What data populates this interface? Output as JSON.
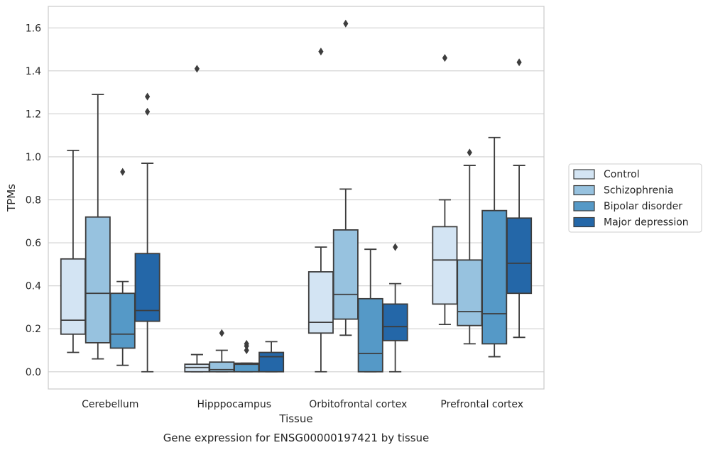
{
  "chart_data": {
    "type": "box",
    "title": "",
    "xlabel": "Tissue",
    "ylabel": "TPMs",
    "caption": "Gene expression for ENSG00000197421 by tissue",
    "ylim": [
      -0.08,
      1.7
    ],
    "yticks": [
      "0.0",
      "0.2",
      "0.4",
      "0.6",
      "0.8",
      "1.0",
      "1.2",
      "1.4",
      "1.6"
    ],
    "grid": "horizontal",
    "legend_position": "right",
    "categories": [
      "Cerebellum",
      "Hipppocampus",
      "Orbitofrontal cortex",
      "Prefrontal cortex"
    ],
    "series": [
      {
        "name": "Control",
        "color": "#d3e4f3",
        "boxes": [
          {
            "whislo": 0.09,
            "q1": 0.175,
            "med": 0.24,
            "q3": 0.525,
            "whishi": 1.03,
            "fliers": []
          },
          {
            "whislo": 0.0,
            "q1": 0.0,
            "med": 0.02,
            "q3": 0.035,
            "whishi": 0.08,
            "fliers": [
              1.41
            ]
          },
          {
            "whislo": 0.0,
            "q1": 0.18,
            "med": 0.23,
            "q3": 0.465,
            "whishi": 0.58,
            "fliers": [
              1.49
            ]
          },
          {
            "whislo": 0.22,
            "q1": 0.315,
            "med": 0.52,
            "q3": 0.675,
            "whishi": 0.8,
            "fliers": [
              1.46
            ]
          }
        ]
      },
      {
        "name": "Schizophrenia",
        "color": "#97c2df",
        "boxes": [
          {
            "whislo": 0.06,
            "q1": 0.135,
            "med": 0.365,
            "q3": 0.72,
            "whishi": 1.29,
            "fliers": []
          },
          {
            "whislo": 0.0,
            "q1": 0.0,
            "med": 0.01,
            "q3": 0.045,
            "whishi": 0.1,
            "fliers": [
              0.18
            ]
          },
          {
            "whislo": 0.17,
            "q1": 0.245,
            "med": 0.36,
            "q3": 0.66,
            "whishi": 0.85,
            "fliers": [
              1.62
            ]
          },
          {
            "whislo": 0.13,
            "q1": 0.215,
            "med": 0.28,
            "q3": 0.52,
            "whishi": 0.96,
            "fliers": [
              1.02
            ]
          }
        ]
      },
      {
        "name": "Bipolar disorder",
        "color": "#5599c7",
        "boxes": [
          {
            "whislo": 0.03,
            "q1": 0.11,
            "med": 0.175,
            "q3": 0.365,
            "whishi": 0.42,
            "fliers": [
              0.93
            ]
          },
          {
            "whislo": 0.0,
            "q1": 0.0,
            "med": 0.035,
            "q3": 0.04,
            "whishi": 0.04,
            "fliers": [
              0.1,
              0.12,
              0.13
            ]
          },
          {
            "whislo": 0.0,
            "q1": 0.0,
            "med": 0.085,
            "q3": 0.34,
            "whishi": 0.57,
            "fliers": []
          },
          {
            "whislo": 0.07,
            "q1": 0.13,
            "med": 0.27,
            "q3": 0.75,
            "whishi": 1.09,
            "fliers": []
          }
        ]
      },
      {
        "name": "Major depression",
        "color": "#2467a8",
        "boxes": [
          {
            "whislo": 0.0,
            "q1": 0.235,
            "med": 0.285,
            "q3": 0.55,
            "whishi": 0.97,
            "fliers": [
              1.21,
              1.28
            ]
          },
          {
            "whislo": 0.0,
            "q1": 0.0,
            "med": 0.07,
            "q3": 0.09,
            "whishi": 0.14,
            "fliers": []
          },
          {
            "whislo": 0.0,
            "q1": 0.145,
            "med": 0.21,
            "q3": 0.315,
            "whishi": 0.41,
            "fliers": [
              0.58
            ]
          },
          {
            "whislo": 0.16,
            "q1": 0.365,
            "med": 0.505,
            "q3": 0.715,
            "whishi": 0.96,
            "fliers": [
              1.44
            ]
          }
        ]
      }
    ]
  }
}
